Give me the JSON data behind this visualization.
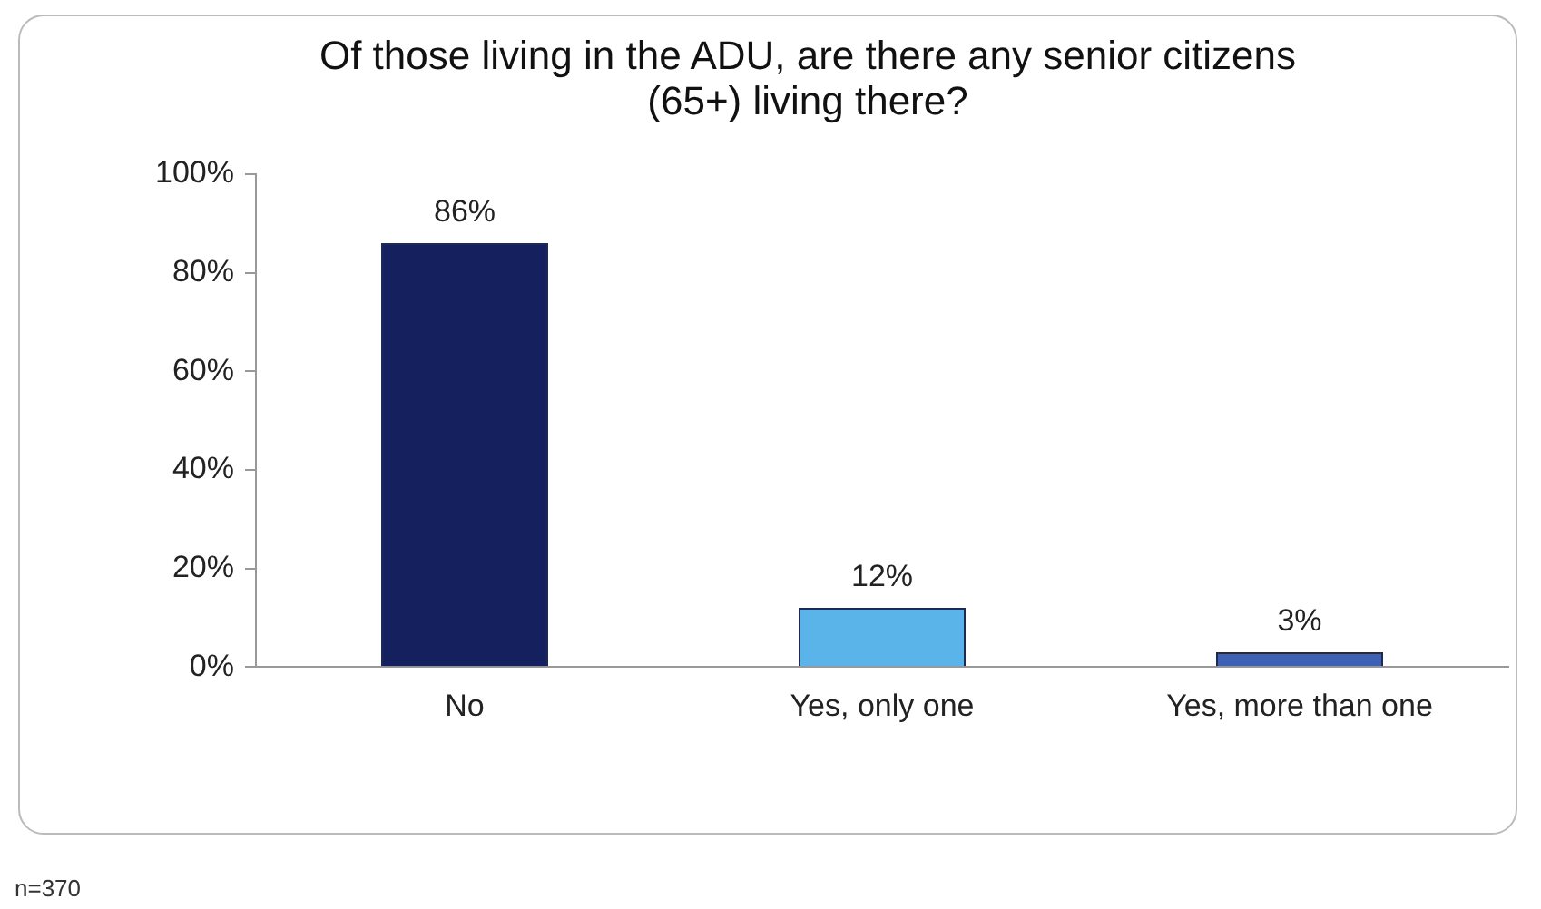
{
  "chart_data": {
    "type": "bar",
    "title": "Of those living in the ADU, are there any senior citizens (65+) living there?",
    "categories": [
      "No",
      "Yes, only one",
      "Yes, more than one"
    ],
    "values": [
      86,
      12,
      3
    ],
    "colors": [
      "#14215e",
      "#5ab4ea",
      "#3d62b3"
    ],
    "value_labels": [
      "86%",
      "12%",
      "3%"
    ],
    "ylim": [
      0,
      100
    ],
    "yticks": [
      {
        "value": 0,
        "label": "0%"
      },
      {
        "value": 20,
        "label": "20%"
      },
      {
        "value": 40,
        "label": "40%"
      },
      {
        "value": 60,
        "label": "60%"
      },
      {
        "value": 80,
        "label": "80%"
      },
      {
        "value": 100,
        "label": "100%"
      }
    ],
    "annotations": [
      "n=370"
    ]
  }
}
